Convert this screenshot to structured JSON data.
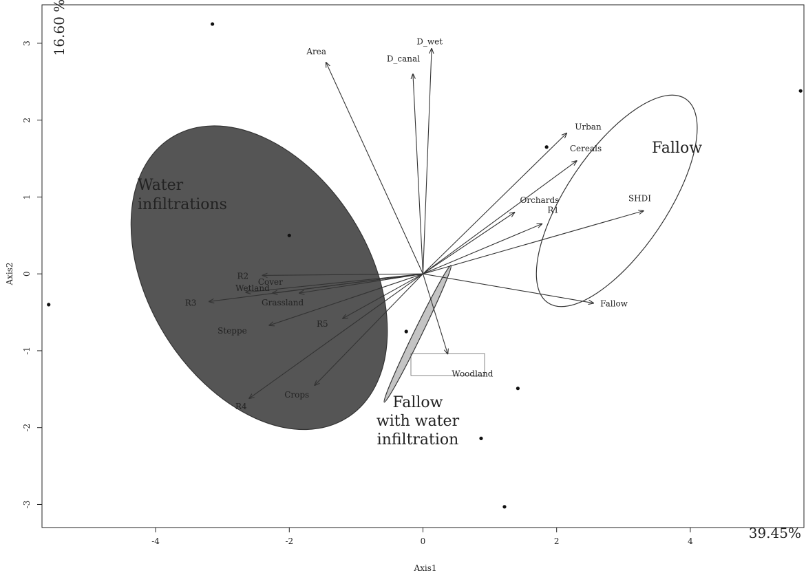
{
  "chart_data": {
    "type": "scatter",
    "xlabel": "Axis1",
    "ylabel": "Axis2",
    "xlim": [
      -5.7,
      5.7
    ],
    "ylim": [
      -3.3,
      3.5
    ],
    "x_ticks": [
      -4,
      -2,
      0,
      2,
      4
    ],
    "y_ticks": [
      -3,
      -2,
      -1,
      0,
      1,
      2,
      3
    ],
    "axis1_variance": "39.45%",
    "axis2_variance": "16.60 %",
    "grid": false,
    "points": [
      {
        "x": -3.15,
        "y": 3.25
      },
      {
        "x": 5.65,
        "y": 2.38
      },
      {
        "x": 1.85,
        "y": 1.65
      },
      {
        "x": -2.0,
        "y": 0.5
      },
      {
        "x": -5.6,
        "y": -0.4
      },
      {
        "x": -0.25,
        "y": -0.75
      },
      {
        "x": 1.42,
        "y": -1.49
      },
      {
        "x": 0.87,
        "y": -2.14
      },
      {
        "x": 1.22,
        "y": -3.03
      }
    ],
    "vectors": [
      {
        "label": "D_wet",
        "x": 0.13,
        "y": 2.93
      },
      {
        "label": "D_canal",
        "x": -0.15,
        "y": 2.6
      },
      {
        "label": "Area",
        "x": -1.45,
        "y": 2.75
      },
      {
        "label": "Urban",
        "x": 2.15,
        "y": 1.83
      },
      {
        "label": "Cereals",
        "x": 2.3,
        "y": 1.47
      },
      {
        "label": "Orchards",
        "x": 1.37,
        "y": 0.8
      },
      {
        "label": "R1",
        "x": 1.78,
        "y": 0.65
      },
      {
        "label": "SHDI",
        "x": 3.3,
        "y": 0.82
      },
      {
        "label": "Fallow",
        "x": 2.55,
        "y": -0.38
      },
      {
        "label": "Woodland",
        "x": 0.37,
        "y": -1.04
      },
      {
        "label": "R2",
        "x": -2.4,
        "y": -0.02
      },
      {
        "label": "Wetland",
        "x": -2.65,
        "y": -0.24
      },
      {
        "label": "R3",
        "x": -3.2,
        "y": -0.36
      },
      {
        "label": "Grassland",
        "x": -2.25,
        "y": -0.25
      },
      {
        "label": "Cover",
        "x": -1.85,
        "y": -0.25
      },
      {
        "label": "Steppe",
        "x": -2.3,
        "y": -0.67
      },
      {
        "label": "R5",
        "x": -1.2,
        "y": -0.58
      },
      {
        "label": "R4",
        "x": -2.6,
        "y": -1.62
      },
      {
        "label": "Crops",
        "x": -1.62,
        "y": -1.45
      }
    ],
    "groups": [
      {
        "name_lines": [
          "Water",
          "infiltrations"
        ],
        "cx": -2.45,
        "cy": -0.05,
        "rx": 1.65,
        "ry": 2.15,
        "angle_deg": -32,
        "fill": "#555555",
        "stroke": "#333333"
      },
      {
        "name_lines": [
          "Fallow"
        ],
        "cx": 2.9,
        "cy": 0.95,
        "rx": 0.75,
        "ry": 1.6,
        "angle_deg": 34,
        "fill": "none",
        "stroke": "#333333"
      },
      {
        "name_lines": [
          "Fallow",
          "with water",
          "infiltration"
        ],
        "cx": -0.08,
        "cy": -0.78,
        "rx": 0.06,
        "ry": 0.99,
        "angle_deg": 26,
        "fill": "#c4c4c4",
        "stroke": "#333333"
      }
    ]
  }
}
